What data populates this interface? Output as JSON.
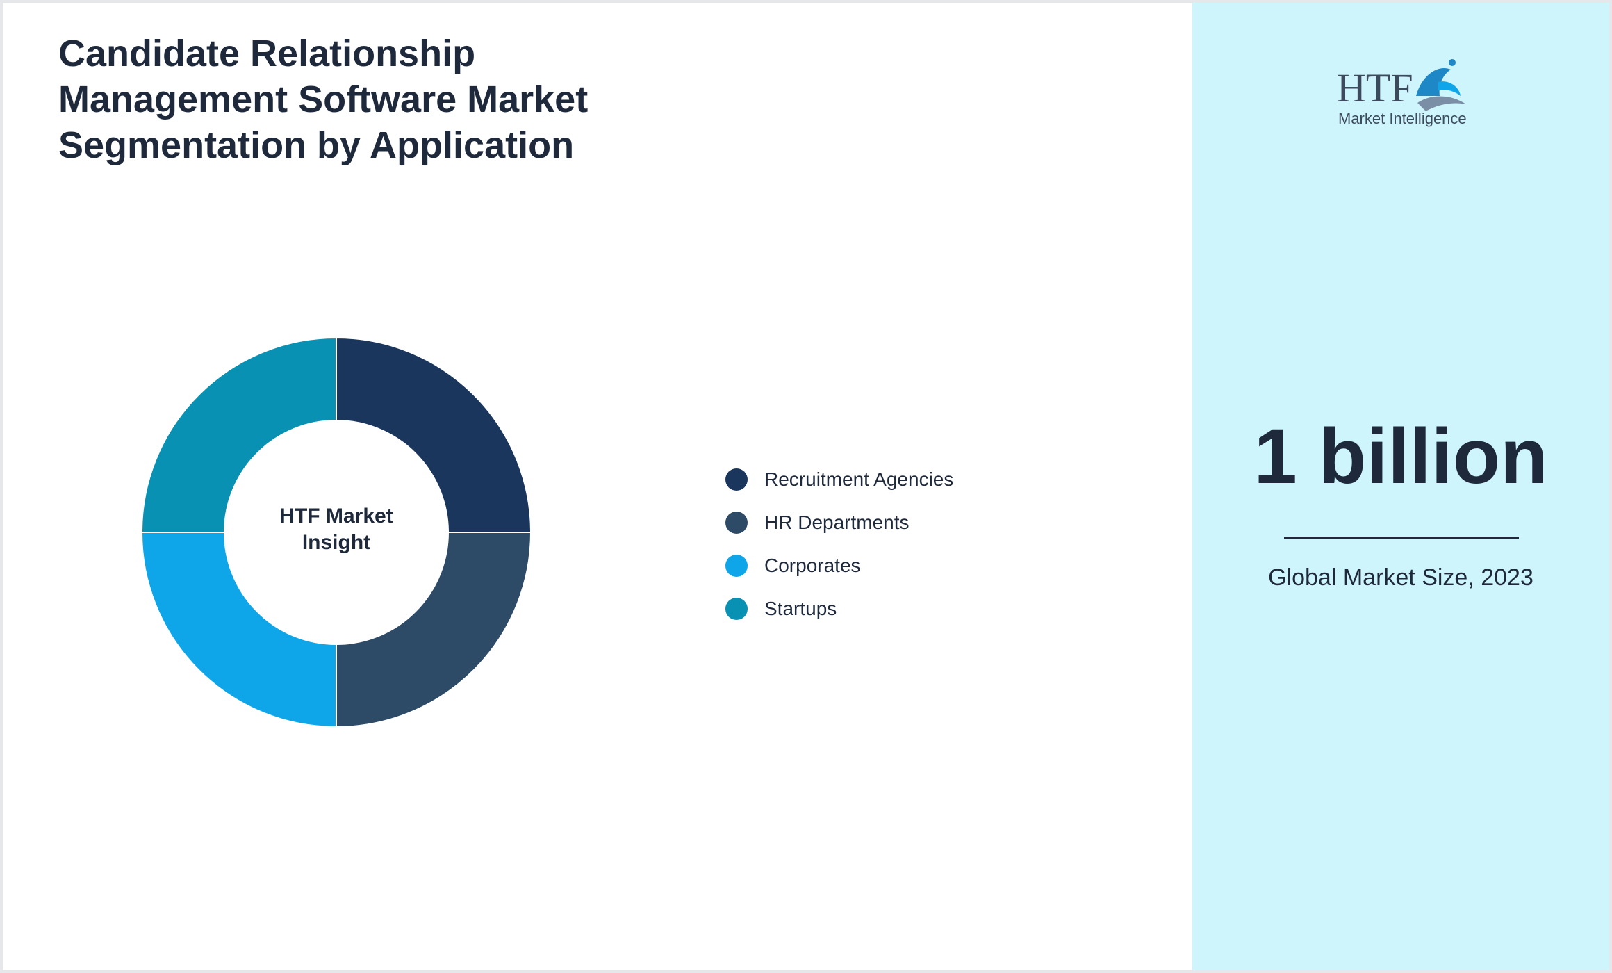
{
  "title": "Candidate Relationship Management Software Market Segmentation by Application",
  "chart_data": {
    "type": "pie",
    "variant": "donut",
    "center_label": "HTF Market Insight",
    "categories": [
      "Recruitment Agencies",
      "HR Departments",
      "Corporates",
      "Startups"
    ],
    "values": [
      25,
      25,
      25,
      25
    ],
    "colors": [
      "#1b365d",
      "#2d4a66",
      "#0ea5e9",
      "#0891b2"
    ],
    "legend_position": "right"
  },
  "side_panel": {
    "logo": {
      "name": "htf-market-intelligence-logo",
      "mark": "HTF",
      "text": "Market Intelligence"
    },
    "value": "1 billion",
    "caption": "Global Market Size, 2023"
  },
  "colors": {
    "side_background": "#cff5fc",
    "text": "#1e293b"
  }
}
